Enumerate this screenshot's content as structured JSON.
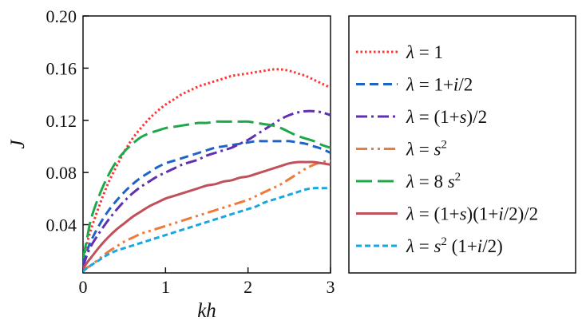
{
  "chart_data": {
    "type": "line",
    "title": "",
    "xlabel": "kh",
    "ylabel": "J",
    "xlim": [
      0,
      3
    ],
    "ylim": [
      0.003,
      0.2
    ],
    "xticks": [
      0,
      1,
      2,
      3
    ],
    "xtick_labels": [
      "0",
      "1",
      "2",
      "3"
    ],
    "yticks": [
      0.04,
      0.08,
      0.12,
      0.16,
      0.2
    ],
    "ytick_labels": [
      "0.04",
      "0.08",
      "0.12",
      "0.16",
      "0.20"
    ],
    "legend_position": "right, outside plot",
    "x": [
      0,
      0.05,
      0.1,
      0.2,
      0.3,
      0.4,
      0.5,
      0.6,
      0.7,
      0.8,
      0.9,
      1.0,
      1.1,
      1.2,
      1.3,
      1.4,
      1.5,
      1.6,
      1.7,
      1.8,
      1.9,
      2.0,
      2.1,
      2.2,
      2.3,
      2.4,
      2.5,
      2.6,
      2.7,
      2.8,
      2.9,
      3.0
    ],
    "series": [
      {
        "name": "λ = 1",
        "legend_parts": [
          {
            "t": "λ",
            "i": true
          },
          {
            "t": " = 1",
            "i": false
          }
        ],
        "color": "#ff3333",
        "dash": "2.5,3",
        "values": [
          0.012,
          0.026,
          0.037,
          0.055,
          0.071,
          0.084,
          0.096,
          0.106,
          0.114,
          0.121,
          0.127,
          0.132,
          0.136,
          0.14,
          0.143,
          0.146,
          0.148,
          0.15,
          0.152,
          0.154,
          0.155,
          0.156,
          0.157,
          0.158,
          0.159,
          0.159,
          0.158,
          0.156,
          0.154,
          0.151,
          0.148,
          0.145
        ]
      },
      {
        "name": "λ = 1+i/2",
        "legend_parts": [
          {
            "t": "λ",
            "i": true
          },
          {
            "t": " = 1+",
            "i": false
          },
          {
            "t": "i",
            "i": true
          },
          {
            "t": "/2",
            "i": false
          }
        ],
        "color": "#1f63c6",
        "dash": "11,6",
        "values": [
          0.01,
          0.02,
          0.028,
          0.04,
          0.05,
          0.058,
          0.065,
          0.071,
          0.076,
          0.08,
          0.084,
          0.087,
          0.089,
          0.091,
          0.093,
          0.095,
          0.097,
          0.099,
          0.1,
          0.101,
          0.102,
          0.103,
          0.104,
          0.104,
          0.104,
          0.104,
          0.104,
          0.103,
          0.102,
          0.1,
          0.098,
          0.095
        ]
      },
      {
        "name": "λ = (1+s)/2",
        "legend_parts": [
          {
            "t": "λ",
            "i": true
          },
          {
            "t": " = (1+",
            "i": false
          },
          {
            "t": "s",
            "i": true
          },
          {
            "t": ")/2",
            "i": false
          }
        ],
        "color": "#6030b0",
        "dash": "14,5,3,5",
        "values": [
          0.008,
          0.017,
          0.024,
          0.034,
          0.043,
          0.051,
          0.058,
          0.064,
          0.069,
          0.073,
          0.077,
          0.08,
          0.083,
          0.086,
          0.088,
          0.09,
          0.093,
          0.095,
          0.097,
          0.099,
          0.102,
          0.105,
          0.109,
          0.113,
          0.117,
          0.121,
          0.124,
          0.126,
          0.127,
          0.127,
          0.126,
          0.124
        ]
      },
      {
        "name": "λ = s²",
        "legend_parts": [
          {
            "t": "λ",
            "i": true
          },
          {
            "t": " = ",
            "i": false
          },
          {
            "t": "s",
            "i": true
          },
          {
            "t": "2",
            "i": false,
            "sup": true
          }
        ],
        "color": "#f07a3a",
        "dash": "14,5,3,5,3,5",
        "values": [
          0.004,
          0.007,
          0.009,
          0.014,
          0.019,
          0.023,
          0.027,
          0.03,
          0.033,
          0.035,
          0.037,
          0.039,
          0.041,
          0.043,
          0.045,
          0.047,
          0.049,
          0.051,
          0.053,
          0.055,
          0.057,
          0.059,
          0.062,
          0.065,
          0.068,
          0.071,
          0.075,
          0.079,
          0.083,
          0.086,
          0.088,
          0.089
        ]
      },
      {
        "name": "λ = 8 s²",
        "legend_parts": [
          {
            "t": "λ",
            "i": true
          },
          {
            "t": " = 8 ",
            "i": false
          },
          {
            "t": "s",
            "i": true
          },
          {
            "t": "2",
            "i": false,
            "sup": true
          }
        ],
        "color": "#1fa84a",
        "dash": "20,7",
        "values": [
          0.014,
          0.03,
          0.045,
          0.063,
          0.077,
          0.088,
          0.096,
          0.102,
          0.107,
          0.11,
          0.112,
          0.114,
          0.115,
          0.116,
          0.117,
          0.118,
          0.118,
          0.119,
          0.119,
          0.119,
          0.119,
          0.119,
          0.118,
          0.117,
          0.116,
          0.114,
          0.111,
          0.108,
          0.106,
          0.104,
          0.101,
          0.099
        ]
      },
      {
        "name": "λ = (1+s)(1+i/2)/2",
        "legend_parts": [
          {
            "t": "λ",
            "i": true
          },
          {
            "t": " = (1+",
            "i": false
          },
          {
            "t": "s",
            "i": true
          },
          {
            "t": ")(1+",
            "i": false
          },
          {
            "t": "i",
            "i": true
          },
          {
            "t": "/2)/2",
            "i": false
          }
        ],
        "color": "#c0505a",
        "dash": "",
        "values": [
          0.006,
          0.011,
          0.015,
          0.023,
          0.03,
          0.036,
          0.041,
          0.046,
          0.05,
          0.054,
          0.057,
          0.06,
          0.062,
          0.064,
          0.066,
          0.068,
          0.07,
          0.071,
          0.073,
          0.074,
          0.076,
          0.077,
          0.079,
          0.081,
          0.083,
          0.085,
          0.087,
          0.088,
          0.088,
          0.088,
          0.087,
          0.086
        ]
      },
      {
        "name": "λ = s² (1+i/2)",
        "legend_parts": [
          {
            "t": "λ",
            "i": true
          },
          {
            "t": " = ",
            "i": false
          },
          {
            "t": "s",
            "i": true
          },
          {
            "t": "2",
            "i": false,
            "sup": true
          },
          {
            "t": " (1+",
            "i": false
          },
          {
            "t": "i",
            "i": true
          },
          {
            "t": "/2)",
            "i": false
          }
        ],
        "color": "#1aa7e0",
        "dash": "7,4",
        "values": [
          0.004,
          0.007,
          0.009,
          0.013,
          0.017,
          0.02,
          0.022,
          0.024,
          0.026,
          0.028,
          0.03,
          0.032,
          0.034,
          0.036,
          0.038,
          0.04,
          0.042,
          0.044,
          0.046,
          0.048,
          0.05,
          0.052,
          0.054,
          0.057,
          0.059,
          0.061,
          0.063,
          0.065,
          0.067,
          0.068,
          0.068,
          0.068
        ]
      }
    ]
  }
}
